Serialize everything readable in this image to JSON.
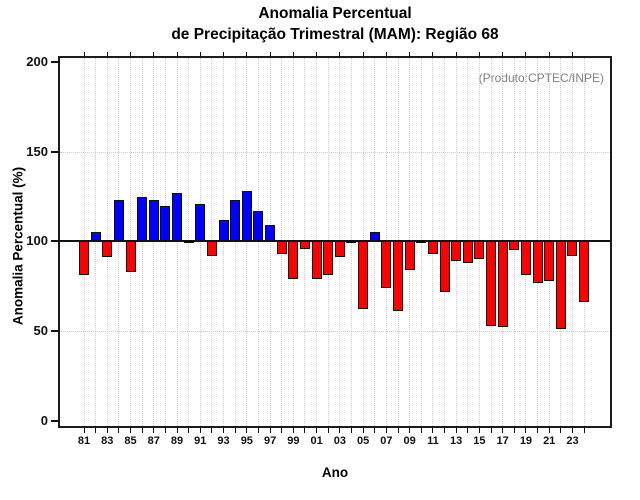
{
  "title": {
    "line1": "Anomalia Percentual",
    "line2": "de Precipitação Trimestral (MAM): Região 68"
  },
  "annotation": "(Produto:CPTEC/INPE)",
  "chart_data": {
    "type": "bar",
    "title": "Anomalia Percentual de Precipitação Trimestral (MAM): Região 68",
    "xlabel": "Ano",
    "ylabel": "Anomalia Percentual (%)",
    "ylim": [
      0,
      200
    ],
    "yticks": [
      0,
      50,
      100,
      150,
      200
    ],
    "baseline": 100,
    "grid": "dotted",
    "legend": "none",
    "bar_colors": {
      "above_baseline": "#0000ff",
      "below_baseline": "#ff0000",
      "at_baseline": "#000000"
    },
    "years": [
      1981,
      1982,
      1983,
      1984,
      1985,
      1986,
      1987,
      1988,
      1989,
      1990,
      1991,
      1992,
      1993,
      1994,
      1995,
      1996,
      1997,
      1998,
      1999,
      2000,
      2001,
      2002,
      2003,
      2004,
      2005,
      2006,
      2007,
      2008,
      2009,
      2010,
      2011,
      2012,
      2013,
      2014,
      2015,
      2016,
      2017,
      2018,
      2019,
      2020,
      2021,
      2022,
      2023,
      2024
    ],
    "values": [
      81,
      105,
      91,
      123,
      83,
      125,
      123,
      120,
      127,
      100,
      121,
      92,
      112,
      123,
      128,
      117,
      109,
      93,
      79,
      96,
      79,
      81,
      91,
      100,
      62,
      105,
      74,
      61,
      84,
      100,
      93,
      72,
      89,
      88,
      90,
      53,
      52,
      95,
      81,
      77,
      78,
      51,
      92,
      66
    ],
    "xtick_labels": [
      "81",
      "83",
      "85",
      "87",
      "89",
      "91",
      "93",
      "95",
      "97",
      "99",
      "01",
      "03",
      "05",
      "07",
      "09",
      "11",
      "13",
      "15",
      "17",
      "19",
      "21",
      "23"
    ]
  }
}
